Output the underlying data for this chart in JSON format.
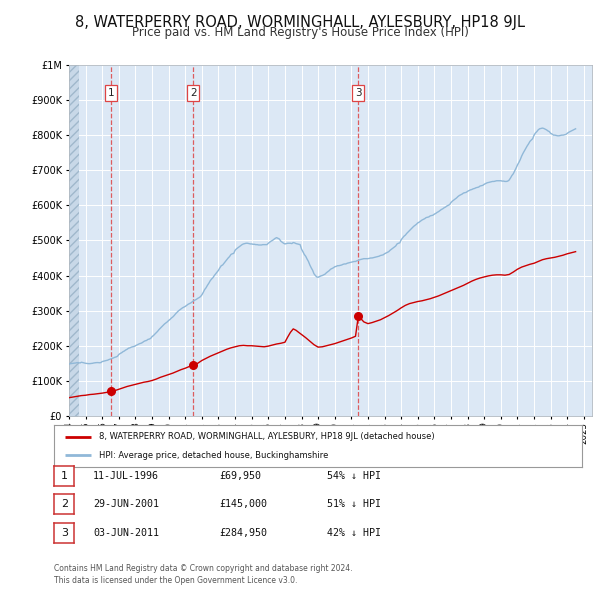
{
  "title": "8, WATERPERRY ROAD, WORMINGHALL, AYLESBURY, HP18 9JL",
  "subtitle": "Price paid vs. HM Land Registry's House Price Index (HPI)",
  "title_fontsize": 10.5,
  "subtitle_fontsize": 8.5,
  "background_color": "#ffffff",
  "plot_bg_color": "#dce8f5",
  "hatch_color": "#c8d8e8",
  "grid_color": "#ffffff",
  "red_line_color": "#cc0000",
  "blue_line_color": "#90b8d8",
  "sale_marker_color": "#cc0000",
  "dashed_line_color": "#dd4444",
  "legend_label_red": "8, WATERPERRY ROAD, WORMINGHALL, AYLESBURY, HP18 9JL (detached house)",
  "legend_label_blue": "HPI: Average price, detached house, Buckinghamshire",
  "footer_text": "Contains HM Land Registry data © Crown copyright and database right 2024.\nThis data is licensed under the Open Government Licence v3.0.",
  "sales": [
    {
      "num": 1,
      "date": "11-JUL-1996",
      "price": 69950,
      "price_str": "£69,950",
      "pct": "54% ↓ HPI",
      "x_year": 1996.53
    },
    {
      "num": 2,
      "date": "29-JUN-2001",
      "price": 145000,
      "price_str": "£145,000",
      "pct": "51% ↓ HPI",
      "x_year": 2001.49
    },
    {
      "num": 3,
      "date": "03-JUN-2011",
      "price": 284950,
      "price_str": "£284,950",
      "pct": "42% ↓ HPI",
      "x_year": 2011.42
    }
  ],
  "ylim": [
    0,
    1000000
  ],
  "yticks": [
    0,
    100000,
    200000,
    300000,
    400000,
    500000,
    600000,
    700000,
    800000,
    900000,
    1000000
  ],
  "xlim_start": 1994.0,
  "xlim_end": 2025.5,
  "hpi_years": [
    1994.0,
    1994.083,
    1994.167,
    1994.25,
    1994.333,
    1994.417,
    1994.5,
    1994.583,
    1994.667,
    1994.75,
    1994.833,
    1994.917,
    1995.0,
    1995.083,
    1995.167,
    1995.25,
    1995.333,
    1995.417,
    1995.5,
    1995.583,
    1995.667,
    1995.75,
    1995.833,
    1995.917,
    1996.0,
    1996.083,
    1996.167,
    1996.25,
    1996.333,
    1996.417,
    1996.5,
    1996.583,
    1996.667,
    1996.75,
    1996.833,
    1996.917,
    1997.0,
    1997.083,
    1997.167,
    1997.25,
    1997.333,
    1997.417,
    1997.5,
    1997.583,
    1997.667,
    1997.75,
    1997.833,
    1997.917,
    1998.0,
    1998.083,
    1998.167,
    1998.25,
    1998.333,
    1998.417,
    1998.5,
    1998.583,
    1998.667,
    1998.75,
    1998.833,
    1998.917,
    1999.0,
    1999.083,
    1999.167,
    1999.25,
    1999.333,
    1999.417,
    1999.5,
    1999.583,
    1999.667,
    1999.75,
    1999.833,
    1999.917,
    2000.0,
    2000.083,
    2000.167,
    2000.25,
    2000.333,
    2000.417,
    2000.5,
    2000.583,
    2000.667,
    2000.75,
    2000.833,
    2000.917,
    2001.0,
    2001.083,
    2001.167,
    2001.25,
    2001.333,
    2001.417,
    2001.5,
    2001.583,
    2001.667,
    2001.75,
    2001.833,
    2001.917,
    2002.0,
    2002.083,
    2002.167,
    2002.25,
    2002.333,
    2002.417,
    2002.5,
    2002.583,
    2002.667,
    2002.75,
    2002.833,
    2002.917,
    2003.0,
    2003.083,
    2003.167,
    2003.25,
    2003.333,
    2003.417,
    2003.5,
    2003.583,
    2003.667,
    2003.75,
    2003.833,
    2003.917,
    2004.0,
    2004.083,
    2004.167,
    2004.25,
    2004.333,
    2004.417,
    2004.5,
    2004.583,
    2004.667,
    2004.75,
    2004.833,
    2004.917,
    2005.0,
    2005.083,
    2005.167,
    2005.25,
    2005.333,
    2005.417,
    2005.5,
    2005.583,
    2005.667,
    2005.75,
    2005.833,
    2005.917,
    2006.0,
    2006.083,
    2006.167,
    2006.25,
    2006.333,
    2006.417,
    2006.5,
    2006.583,
    2006.667,
    2006.75,
    2006.833,
    2006.917,
    2007.0,
    2007.083,
    2007.167,
    2007.25,
    2007.333,
    2007.417,
    2007.5,
    2007.583,
    2007.667,
    2007.75,
    2007.833,
    2007.917,
    2008.0,
    2008.083,
    2008.167,
    2008.25,
    2008.333,
    2008.417,
    2008.5,
    2008.583,
    2008.667,
    2008.75,
    2008.833,
    2008.917,
    2009.0,
    2009.083,
    2009.167,
    2009.25,
    2009.333,
    2009.417,
    2009.5,
    2009.583,
    2009.667,
    2009.75,
    2009.833,
    2009.917,
    2010.0,
    2010.083,
    2010.167,
    2010.25,
    2010.333,
    2010.417,
    2010.5,
    2010.583,
    2010.667,
    2010.75,
    2010.833,
    2010.917,
    2011.0,
    2011.083,
    2011.167,
    2011.25,
    2011.333,
    2011.417,
    2011.5,
    2011.583,
    2011.667,
    2011.75,
    2011.833,
    2011.917,
    2012.0,
    2012.083,
    2012.167,
    2012.25,
    2012.333,
    2012.417,
    2012.5,
    2012.583,
    2012.667,
    2012.75,
    2012.833,
    2012.917,
    2013.0,
    2013.083,
    2013.167,
    2013.25,
    2013.333,
    2013.417,
    2013.5,
    2013.583,
    2013.667,
    2013.75,
    2013.833,
    2013.917,
    2014.0,
    2014.083,
    2014.167,
    2014.25,
    2014.333,
    2014.417,
    2014.5,
    2014.583,
    2014.667,
    2014.75,
    2014.833,
    2014.917,
    2015.0,
    2015.083,
    2015.167,
    2015.25,
    2015.333,
    2015.417,
    2015.5,
    2015.583,
    2015.667,
    2015.75,
    2015.833,
    2015.917,
    2016.0,
    2016.083,
    2016.167,
    2016.25,
    2016.333,
    2016.417,
    2016.5,
    2016.583,
    2016.667,
    2016.75,
    2016.833,
    2016.917,
    2017.0,
    2017.083,
    2017.167,
    2017.25,
    2017.333,
    2017.417,
    2017.5,
    2017.583,
    2017.667,
    2017.75,
    2017.833,
    2017.917,
    2018.0,
    2018.083,
    2018.167,
    2018.25,
    2018.333,
    2018.417,
    2018.5,
    2018.583,
    2018.667,
    2018.75,
    2018.833,
    2018.917,
    2019.0,
    2019.083,
    2019.167,
    2019.25,
    2019.333,
    2019.417,
    2019.5,
    2019.583,
    2019.667,
    2019.75,
    2019.833,
    2019.917,
    2020.0,
    2020.083,
    2020.167,
    2020.25,
    2020.333,
    2020.417,
    2020.5,
    2020.583,
    2020.667,
    2020.75,
    2020.833,
    2020.917,
    2021.0,
    2021.083,
    2021.167,
    2021.25,
    2021.333,
    2021.417,
    2021.5,
    2021.583,
    2021.667,
    2021.75,
    2021.833,
    2021.917,
    2022.0,
    2022.083,
    2022.167,
    2022.25,
    2022.333,
    2022.417,
    2022.5,
    2022.583,
    2022.667,
    2022.75,
    2022.833,
    2022.917,
    2023.0,
    2023.083,
    2023.167,
    2023.25,
    2023.333,
    2023.417,
    2023.5,
    2023.583,
    2023.667,
    2023.75,
    2023.833,
    2023.917,
    2024.0,
    2024.083,
    2024.167,
    2024.25,
    2024.333,
    2024.417,
    2024.5
  ],
  "hpi_values": [
    148000,
    149000,
    149500,
    150000,
    150500,
    151000,
    152000,
    151500,
    151000,
    153000,
    152000,
    151000,
    150000,
    149500,
    149000,
    149000,
    149500,
    150000,
    151000,
    151500,
    152000,
    152000,
    151500,
    152000,
    155000,
    156000,
    157000,
    158000,
    159000,
    161000,
    162000,
    164000,
    165000,
    167000,
    168000,
    170000,
    175000,
    178000,
    180000,
    183000,
    185000,
    188000,
    190000,
    193000,
    194000,
    196000,
    197000,
    198000,
    200000,
    202000,
    204000,
    206000,
    207000,
    209000,
    212000,
    214000,
    215000,
    218000,
    219000,
    221000,
    226000,
    229000,
    233000,
    237000,
    241000,
    246000,
    250000,
    254000,
    258000,
    262000,
    265000,
    268000,
    272000,
    275000,
    279000,
    282000,
    286000,
    291000,
    295000,
    299000,
    302000,
    305000,
    308000,
    310000,
    312000,
    315000,
    318000,
    320000,
    322000,
    325000,
    328000,
    330000,
    332000,
    335000,
    337000,
    340000,
    345000,
    352000,
    360000,
    365000,
    372000,
    378000,
    385000,
    390000,
    394000,
    400000,
    405000,
    410000,
    415000,
    422000,
    428000,
    430000,
    435000,
    440000,
    445000,
    450000,
    454000,
    460000,
    462000,
    463000,
    472000,
    476000,
    479000,
    482000,
    485000,
    488000,
    490000,
    491000,
    492000,
    492000,
    491000,
    490000,
    490000,
    489000,
    489000,
    488000,
    488000,
    487000,
    487000,
    487000,
    488000,
    488000,
    488000,
    488000,
    492000,
    495000,
    498000,
    500000,
    503000,
    506000,
    508000,
    506000,
    504000,
    498000,
    495000,
    492000,
    490000,
    491000,
    492000,
    492000,
    492000,
    491000,
    494000,
    493000,
    491000,
    490000,
    489000,
    488000,
    475000,
    468000,
    460000,
    455000,
    447000,
    440000,
    430000,
    422000,
    415000,
    405000,
    400000,
    396000,
    395000,
    397000,
    399000,
    400000,
    402000,
    404000,
    408000,
    411000,
    414000,
    418000,
    420000,
    422000,
    425000,
    426000,
    428000,
    428000,
    429000,
    430000,
    432000,
    433000,
    433000,
    435000,
    436000,
    437000,
    438000,
    439000,
    440000,
    440000,
    442000,
    443000,
    445000,
    446000,
    447000,
    448000,
    448000,
    448000,
    448000,
    449000,
    450000,
    450000,
    451000,
    452000,
    453000,
    454000,
    455000,
    457000,
    458000,
    459000,
    462000,
    464000,
    466000,
    468000,
    472000,
    475000,
    478000,
    481000,
    484000,
    490000,
    492000,
    493000,
    502000,
    507000,
    512000,
    515000,
    520000,
    524000,
    528000,
    532000,
    536000,
    540000,
    543000,
    546000,
    550000,
    552000,
    555000,
    558000,
    560000,
    562000,
    565000,
    566000,
    567000,
    570000,
    571000,
    572000,
    575000,
    577000,
    580000,
    582000,
    585000,
    588000,
    590000,
    593000,
    595000,
    598000,
    600000,
    602000,
    608000,
    612000,
    615000,
    618000,
    621000,
    625000,
    628000,
    630000,
    632000,
    635000,
    636000,
    637000,
    640000,
    642000,
    644000,
    645000,
    647000,
    648000,
    650000,
    651000,
    652000,
    655000,
    656000,
    657000,
    660000,
    662000,
    664000,
    665000,
    666000,
    667000,
    668000,
    668000,
    669000,
    670000,
    670000,
    670000,
    670000,
    669000,
    669000,
    668000,
    668000,
    669000,
    672000,
    678000,
    685000,
    690000,
    698000,
    706000,
    715000,
    722000,
    730000,
    740000,
    748000,
    755000,
    762000,
    769000,
    775000,
    782000,
    786000,
    790000,
    800000,
    806000,
    810000,
    815000,
    818000,
    819000,
    820000,
    819000,
    817000,
    815000,
    812000,
    810000,
    805000,
    803000,
    800000,
    800000,
    799000,
    798000,
    798000,
    799000,
    800000,
    800000,
    801000,
    802000,
    805000,
    808000,
    810000,
    812000,
    814000,
    816000,
    818000
  ],
  "red_years": [
    1994.0,
    1994.25,
    1994.5,
    1994.75,
    1995.0,
    1995.25,
    1995.5,
    1995.75,
    1996.0,
    1996.25,
    1996.53,
    1996.75,
    1997.0,
    1997.25,
    1997.5,
    1997.75,
    1998.0,
    1998.25,
    1998.5,
    1998.75,
    1999.0,
    1999.25,
    1999.5,
    1999.75,
    2000.0,
    2000.25,
    2000.5,
    2000.75,
    2001.0,
    2001.25,
    2001.49,
    2001.75,
    2002.0,
    2002.25,
    2002.5,
    2002.75,
    2003.0,
    2003.25,
    2003.5,
    2003.75,
    2004.0,
    2004.25,
    2004.5,
    2004.75,
    2005.0,
    2005.25,
    2005.5,
    2005.75,
    2006.0,
    2006.25,
    2006.5,
    2006.75,
    2007.0,
    2007.17,
    2007.33,
    2007.5,
    2007.67,
    2007.83,
    2008.0,
    2008.25,
    2008.5,
    2008.75,
    2009.0,
    2009.25,
    2009.5,
    2009.75,
    2010.0,
    2010.25,
    2010.5,
    2010.75,
    2011.0,
    2011.25,
    2011.42,
    2011.75,
    2012.0,
    2012.25,
    2012.5,
    2012.75,
    2013.0,
    2013.25,
    2013.5,
    2013.75,
    2014.0,
    2014.25,
    2014.5,
    2014.75,
    2015.0,
    2015.25,
    2015.5,
    2015.75,
    2016.0,
    2016.25,
    2016.5,
    2016.75,
    2017.0,
    2017.25,
    2017.5,
    2017.75,
    2018.0,
    2018.25,
    2018.5,
    2018.75,
    2019.0,
    2019.25,
    2019.5,
    2019.75,
    2020.0,
    2020.25,
    2020.5,
    2020.75,
    2021.0,
    2021.25,
    2021.5,
    2021.75,
    2022.0,
    2022.25,
    2022.5,
    2022.75,
    2023.0,
    2023.25,
    2023.5,
    2023.75,
    2024.0,
    2024.25,
    2024.5
  ],
  "red_values": [
    52000,
    54000,
    56000,
    58000,
    59000,
    61000,
    62000,
    63500,
    65000,
    67000,
    69950,
    72000,
    76000,
    80000,
    84000,
    87000,
    90000,
    93000,
    96000,
    98000,
    101000,
    105000,
    110000,
    114000,
    118000,
    122000,
    127000,
    132000,
    136000,
    141000,
    145000,
    150000,
    158000,
    164000,
    170000,
    175000,
    180000,
    185000,
    190000,
    194000,
    197000,
    200000,
    201000,
    200000,
    200000,
    199000,
    198000,
    197000,
    199000,
    202000,
    205000,
    207000,
    210000,
    225000,
    238000,
    248000,
    244000,
    238000,
    232000,
    223000,
    213000,
    203000,
    196000,
    197000,
    200000,
    203000,
    206000,
    210000,
    214000,
    218000,
    222000,
    227000,
    284950,
    268000,
    263000,
    266000,
    270000,
    274000,
    280000,
    286000,
    293000,
    300000,
    308000,
    315000,
    320000,
    323000,
    326000,
    328000,
    331000,
    334000,
    338000,
    342000,
    347000,
    352000,
    357000,
    362000,
    367000,
    372000,
    378000,
    384000,
    389000,
    393000,
    396000,
    399000,
    401000,
    402000,
    402000,
    401000,
    403000,
    410000,
    418000,
    424000,
    428000,
    432000,
    435000,
    440000,
    445000,
    448000,
    450000,
    452000,
    455000,
    458000,
    462000,
    465000,
    468000
  ]
}
